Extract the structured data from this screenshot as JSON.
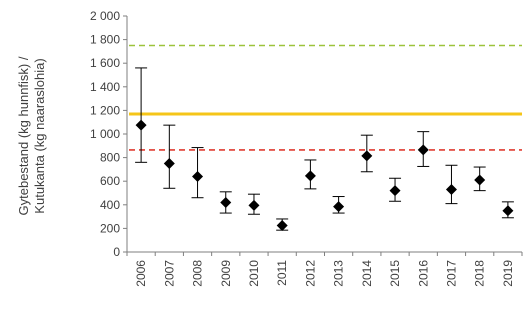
{
  "chart_data": {
    "type": "scatter",
    "ylabel_line1": "Gytebestand (kg hunnfisk) /",
    "ylabel_line2": "Kutukanta (kg naaraslohia)",
    "ylim": [
      0,
      2000
    ],
    "y_ticks": [
      "0",
      "200",
      "400",
      "600",
      "800",
      "1 000",
      "1 200",
      "1 400",
      "1 600",
      "1 800",
      "2 000"
    ],
    "y_tick_values": [
      0,
      200,
      400,
      600,
      800,
      1000,
      1200,
      1400,
      1600,
      1800,
      2000
    ],
    "categories": [
      "2006",
      "2007",
      "2008",
      "2009",
      "2010",
      "2011",
      "2012",
      "2013",
      "2014",
      "2015",
      "2016",
      "2017",
      "2018",
      "2019"
    ],
    "series": [
      {
        "values": [
          1075,
          750,
          640,
          420,
          395,
          225,
          645,
          385,
          815,
          520,
          865,
          530,
          610,
          350
        ],
        "error_low": [
          760,
          540,
          460,
          330,
          320,
          185,
          535,
          330,
          680,
          430,
          725,
          410,
          520,
          290
        ],
        "error_high": [
          1560,
          1075,
          885,
          510,
          490,
          280,
          780,
          470,
          990,
          625,
          1020,
          735,
          720,
          425
        ],
        "color": "#000000"
      }
    ],
    "reference_lines": [
      {
        "value": 1750,
        "style": "dashed",
        "color": "#9dc33b"
      },
      {
        "value": 1170,
        "style": "solid",
        "color": "#f5c518"
      },
      {
        "value": 865,
        "style": "dashed",
        "color": "#e03c31"
      }
    ],
    "grid": false,
    "legend": "none"
  }
}
